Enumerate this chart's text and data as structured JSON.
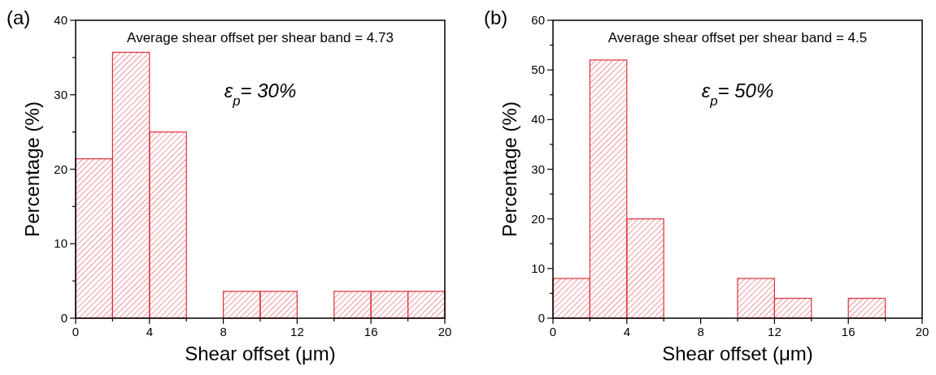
{
  "chart_data": [
    {
      "type": "histogram",
      "bins": [
        0,
        2,
        4,
        6,
        8,
        10,
        12,
        14,
        16,
        18,
        20
      ],
      "values": [
        21.4,
        35.7,
        25,
        0,
        3.6,
        3.6,
        0,
        3.6,
        3.6,
        3.6
      ],
      "color": "#e0303a",
      "xlabel": "Shear offset (μm)",
      "ylabel": "Percentage (%)",
      "xlim": [
        0,
        20
      ],
      "ylim": [
        0,
        40
      ],
      "xticks": [
        0,
        {
          "value": 2,
          "label": null
        },
        4,
        {
          "value": 6,
          "label": null
        },
        8,
        {
          "value": 10,
          "label": null
        },
        12,
        {
          "value": 14,
          "label": null
        },
        16,
        {
          "value": 18,
          "label": null
        },
        20
      ],
      "yticks": [
        0,
        {
          "value": 5,
          "label": null
        },
        10,
        {
          "value": 15,
          "label": null
        },
        20,
        {
          "value": 25,
          "label": null
        },
        30,
        {
          "value": 35,
          "label": null
        },
        40
      ],
      "grid": false,
      "annotations": [
        "(a)",
        "Average shear offset per shear band = 4.73",
        "ε$_{p}$= 30%"
      ]
    },
    {
      "type": "histogram",
      "bins": [
        0,
        2,
        4,
        6,
        8,
        10,
        12,
        14,
        16,
        18,
        20
      ],
      "values": [
        8,
        52,
        20,
        0,
        0,
        8,
        4,
        0,
        4,
        0
      ],
      "color": "#e0303a",
      "xlabel": "Shear offset (μm)",
      "ylabel": "Percentage (%)",
      "xlim": [
        0,
        20
      ],
      "ylim": [
        0,
        60
      ],
      "xticks": [
        0,
        {
          "value": 2,
          "label": null
        },
        4,
        {
          "value": 6,
          "label": null
        },
        8,
        {
          "value": 10,
          "label": null
        },
        12,
        {
          "value": 14,
          "label": null
        },
        16,
        {
          "value": 18,
          "label": null
        },
        20
      ],
      "yticks": [
        0,
        {
          "value": 5,
          "label": null
        },
        10,
        {
          "value": 15,
          "label": null
        },
        20,
        {
          "value": 25,
          "label": null
        },
        30,
        {
          "value": 35,
          "label": null
        },
        40,
        {
          "value": 45,
          "label": null
        },
        50,
        {
          "value": 55,
          "label": null
        },
        60
      ],
      "grid": false,
      "annotations": [
        "(b)",
        "Average shear offset per shear band = 4.5",
        "ε$_{p}$= 50%"
      ]
    }
  ]
}
